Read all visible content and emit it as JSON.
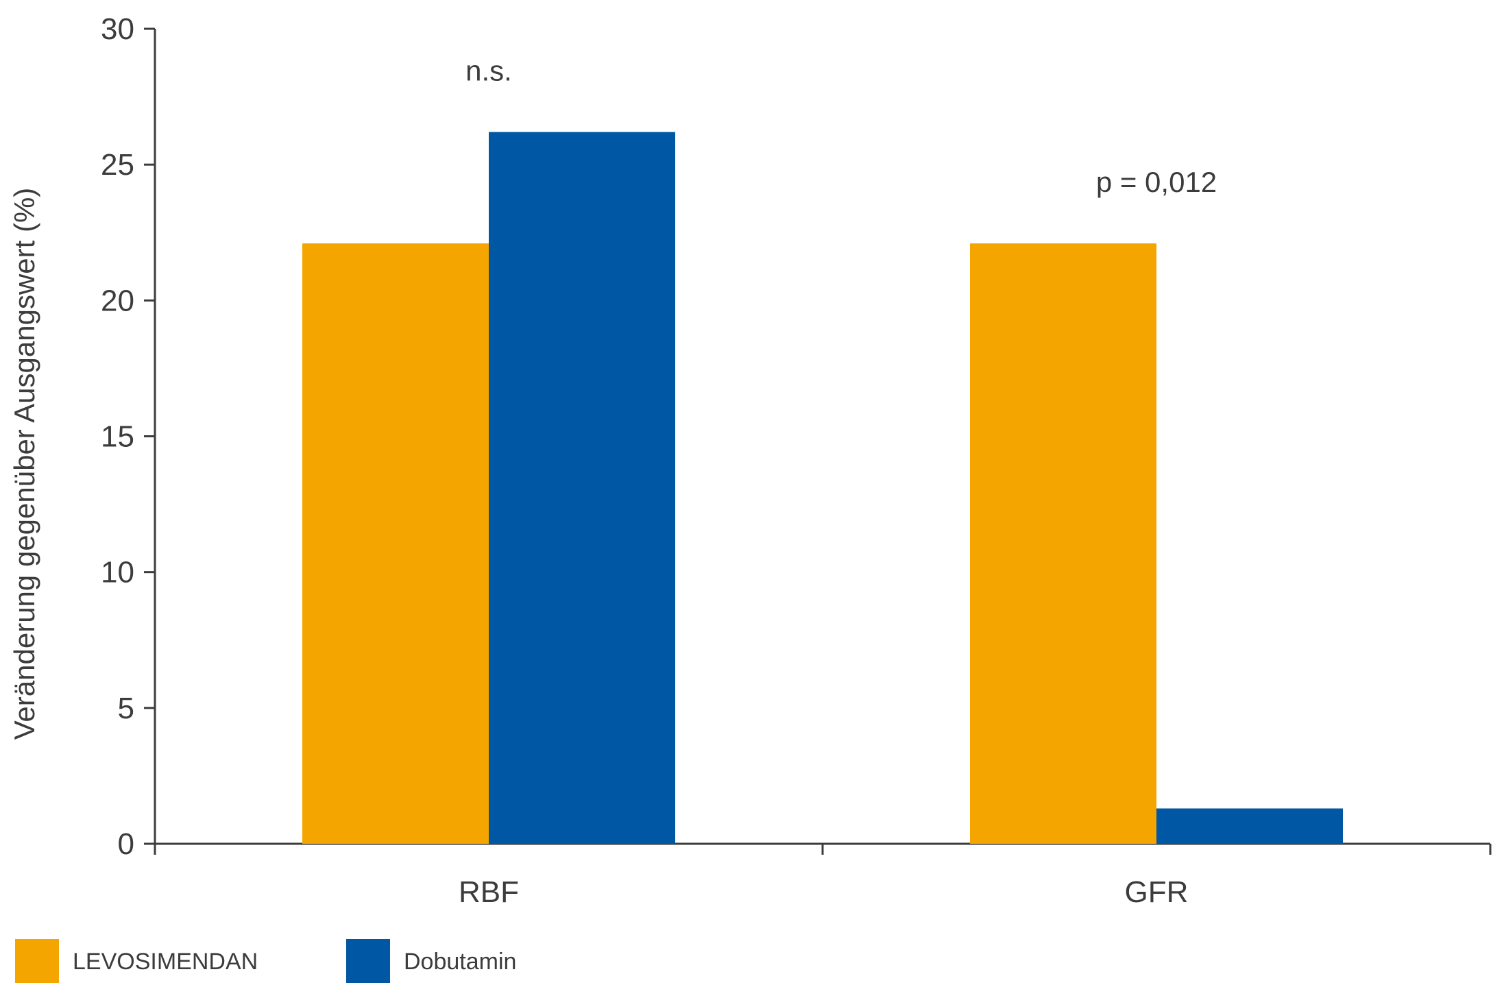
{
  "chart_data": {
    "type": "bar",
    "categories": [
      "RBF",
      "GFR"
    ],
    "series": [
      {
        "name": "LEVOSIMENDAN",
        "color": "#f5a500",
        "values": [
          22.1,
          22.1
        ]
      },
      {
        "name": "Dobutamin",
        "color": "#0057a3",
        "values": [
          26.2,
          1.3
        ]
      }
    ],
    "annotations": [
      "n.s.",
      "p = 0,012"
    ],
    "ylabel": "Veränderung gegenüber Ausgangswert (%)",
    "xlabel": "",
    "ylim": [
      0,
      30
    ],
    "yticks": [
      0,
      5,
      10,
      15,
      20,
      25,
      30
    ],
    "grid": false,
    "legend_position": "bottom-left"
  }
}
